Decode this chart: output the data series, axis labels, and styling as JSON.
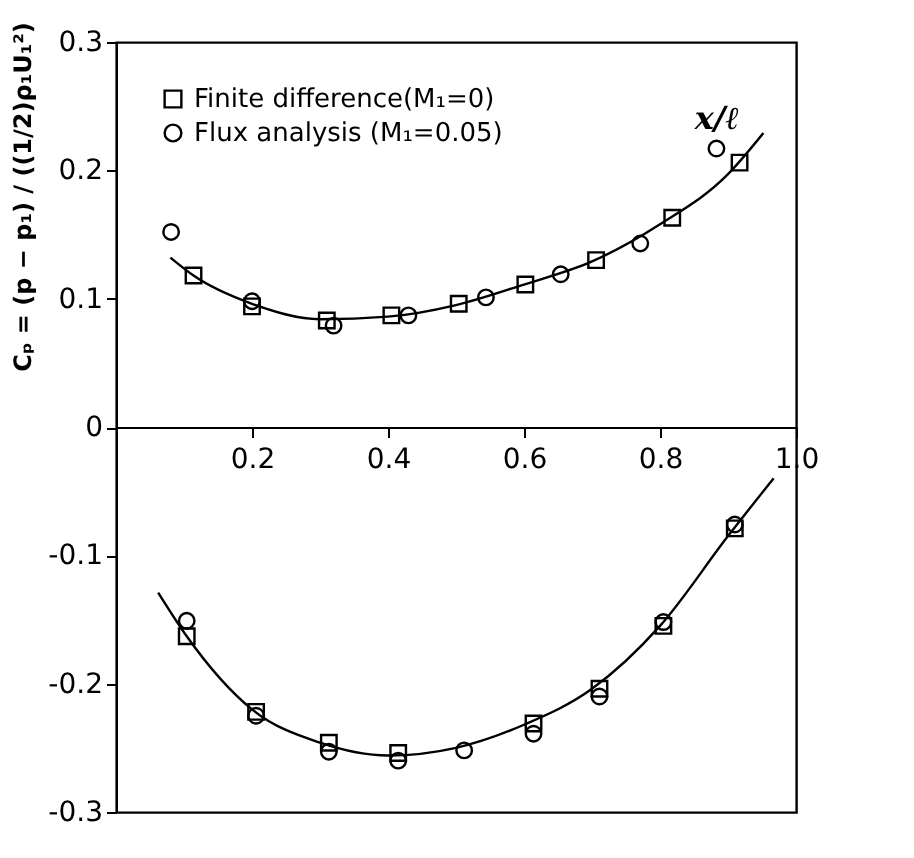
{
  "chart_data": {
    "type": "scatter",
    "xlabel": "x/ℓ",
    "ylabel": "Cₚ = (p − p₁) / ((1/2)ρ₁U₁²)",
    "xlim": [
      0,
      1
    ],
    "ylim": [
      -0.3,
      0.3
    ],
    "xticks": [
      0.2,
      0.4,
      0.6,
      0.8,
      {
        "value": 1,
        "label": "1.0"
      }
    ],
    "yticks": [
      -0.3,
      -0.2,
      -0.1,
      0,
      0.1,
      0.2,
      0.3
    ],
    "grid": false,
    "legend": "top left",
    "series": [
      {
        "name": "Finite difference(M₁=0)",
        "marker": "square",
        "color": "#000000",
        "x": [
          0.114,
          0.2,
          0.31,
          0.405,
          0.504,
          0.602,
          0.706,
          0.818,
          0.917,
          0.104,
          0.206,
          0.313,
          0.415,
          0.614,
          0.711,
          0.805,
          0.91
        ],
        "values": [
          0.118,
          0.094,
          0.083,
          0.087,
          0.096,
          0.111,
          0.13,
          0.163,
          0.206,
          -0.163,
          -0.222,
          -0.246,
          -0.254,
          -0.231,
          -0.204,
          -0.155,
          -0.079
        ]
      },
      {
        "name": "Flux analysis (M₁=0.05)",
        "marker": "circle",
        "color": "#000000",
        "x": [
          0.081,
          0.2,
          0.32,
          0.43,
          0.544,
          0.654,
          0.771,
          0.883,
          0.104,
          0.206,
          0.313,
          0.415,
          0.512,
          0.614,
          0.711,
          0.805,
          0.91
        ],
        "values": [
          0.152,
          0.098,
          0.079,
          0.087,
          0.101,
          0.119,
          0.143,
          0.217,
          -0.151,
          -0.225,
          -0.253,
          -0.26,
          -0.252,
          -0.239,
          -0.21,
          -0.152,
          -0.076
        ]
      },
      {
        "type": "line",
        "marker": "none",
        "line_style": "solid",
        "color": "#000000",
        "x": [
          0.08,
          0.114,
          0.2,
          0.3,
          0.4,
          0.5,
          0.6,
          0.7,
          0.8,
          0.9,
          0.952
        ],
        "values": [
          0.132,
          0.118,
          0.096,
          0.084,
          0.086,
          0.095,
          0.111,
          0.129,
          0.158,
          0.197,
          0.229
        ]
      },
      {
        "type": "line",
        "marker": "none",
        "line_style": "solid",
        "color": "#000000",
        "x": [
          0.062,
          0.104,
          0.2,
          0.3,
          0.4,
          0.5,
          0.6,
          0.7,
          0.8,
          0.9,
          0.967
        ],
        "values": [
          -0.129,
          -0.163,
          -0.22,
          -0.246,
          -0.256,
          -0.25,
          -0.232,
          -0.204,
          -0.155,
          -0.085,
          -0.04
        ]
      }
    ]
  }
}
